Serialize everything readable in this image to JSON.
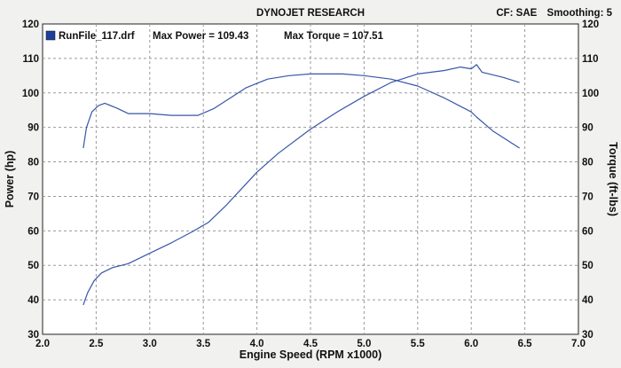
{
  "header": {
    "title": "DYNOJET RESEARCH",
    "correction": "CF: SAE",
    "smoothing": "Smoothing: 5"
  },
  "legend": {
    "run_file": "RunFile_117.drf",
    "max_power": "Max Power = 109.43",
    "max_torque": "Max Torque = 107.51"
  },
  "colors": {
    "background": "#f1f1f0",
    "plot_bg": "#ffffff",
    "grid": "#9a9a9a",
    "series": "#3656a8",
    "legend_swatch": "#1f3f9e"
  },
  "chart_data": {
    "type": "line",
    "title": "DYNOJET RESEARCH",
    "xlabel": "Engine Speed (RPM x1000)",
    "ylabel": "Power (hp)",
    "y2label": "Torque (ft-lbs)",
    "xlim": [
      2.0,
      7.0
    ],
    "ylim": [
      30,
      120
    ],
    "y2lim": [
      30,
      120
    ],
    "x_ticks": [
      "2.0",
      "2.5",
      "3.0",
      "3.5",
      "4.0",
      "4.5",
      "5.0",
      "5.5",
      "6.0",
      "6.5",
      "7.0"
    ],
    "y_ticks": [
      "30",
      "40",
      "50",
      "60",
      "70",
      "80",
      "90",
      "100",
      "110",
      "120"
    ],
    "grid": true,
    "series": [
      {
        "name": "Power",
        "axis": "left",
        "points": [
          [
            2.38,
            38.5
          ],
          [
            2.42,
            42.0
          ],
          [
            2.48,
            45.5
          ],
          [
            2.55,
            47.8
          ],
          [
            2.65,
            49.3
          ],
          [
            2.8,
            50.5
          ],
          [
            3.0,
            53.5
          ],
          [
            3.2,
            56.5
          ],
          [
            3.4,
            59.8
          ],
          [
            3.55,
            62.5
          ],
          [
            3.7,
            67.0
          ],
          [
            3.85,
            72.0
          ],
          [
            4.0,
            77.0
          ],
          [
            4.2,
            82.5
          ],
          [
            4.5,
            89.5
          ],
          [
            4.75,
            94.5
          ],
          [
            5.0,
            99.0
          ],
          [
            5.25,
            103.0
          ],
          [
            5.5,
            105.5
          ],
          [
            5.75,
            106.5
          ],
          [
            5.9,
            107.5
          ],
          [
            6.0,
            107.0
          ],
          [
            6.05,
            108.2
          ],
          [
            6.1,
            106.0
          ],
          [
            6.3,
            104.5
          ],
          [
            6.45,
            103.0
          ]
        ]
      },
      {
        "name": "Torque",
        "axis": "right",
        "points": [
          [
            2.38,
            84.0
          ],
          [
            2.41,
            90.0
          ],
          [
            2.46,
            94.5
          ],
          [
            2.52,
            96.3
          ],
          [
            2.58,
            97.0
          ],
          [
            2.7,
            95.5
          ],
          [
            2.8,
            94.0
          ],
          [
            3.0,
            94.0
          ],
          [
            3.2,
            93.5
          ],
          [
            3.45,
            93.5
          ],
          [
            3.6,
            95.5
          ],
          [
            3.75,
            98.5
          ],
          [
            3.9,
            101.5
          ],
          [
            4.1,
            104.0
          ],
          [
            4.3,
            105.0
          ],
          [
            4.5,
            105.5
          ],
          [
            4.8,
            105.5
          ],
          [
            5.0,
            105.0
          ],
          [
            5.25,
            104.0
          ],
          [
            5.5,
            102.0
          ],
          [
            5.75,
            98.5
          ],
          [
            6.0,
            94.5
          ],
          [
            6.05,
            93.0
          ],
          [
            6.2,
            89.0
          ],
          [
            6.45,
            84.0
          ]
        ]
      }
    ]
  }
}
